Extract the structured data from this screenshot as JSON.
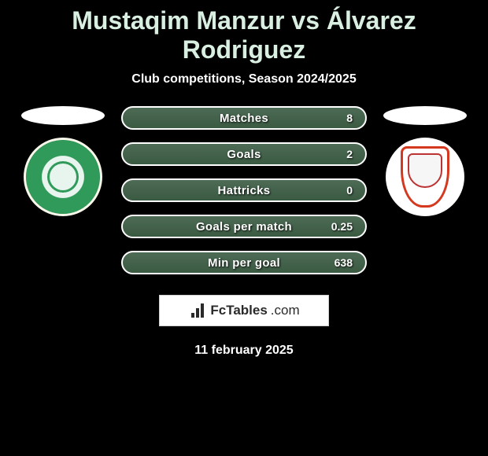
{
  "header": {
    "title": "Mustaqim Manzur vs Álvarez Rodriguez",
    "subtitle": "Club competitions, Season 2024/2025"
  },
  "colors": {
    "background": "#000000",
    "title_color": "#d9efe1",
    "pill_bg_top": "#4d6b55",
    "pill_bg_bottom": "#3b5a42",
    "pill_border": "#ffffff",
    "text": "#ffffff"
  },
  "left_club": {
    "name": "geylang-international",
    "badge_colors": {
      "outer": "#1f6b3d",
      "ring": "#2f9a5a",
      "inner": "#e8f5ee",
      "border": "#faf8ea"
    }
  },
  "right_club": {
    "name": "bangkok-glass",
    "badge_colors": {
      "shield_border": "#d4381e",
      "shield_bg": "#ffffff",
      "circle_bg": "#ffffff"
    }
  },
  "stats": [
    {
      "label": "Matches",
      "right_value": "8"
    },
    {
      "label": "Goals",
      "right_value": "2"
    },
    {
      "label": "Hattricks",
      "right_value": "0"
    },
    {
      "label": "Goals per match",
      "right_value": "0.25"
    },
    {
      "label": "Min per goal",
      "right_value": "638"
    }
  ],
  "brand": {
    "name": "FcTables",
    "suffix": ".com"
  },
  "footer": {
    "date": "11 february 2025"
  }
}
